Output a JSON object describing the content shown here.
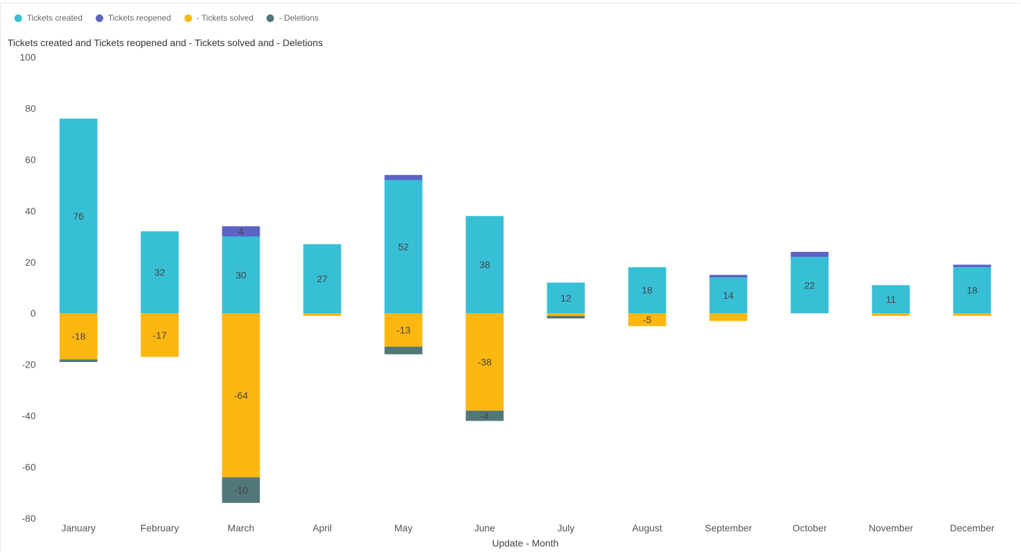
{
  "legend": [
    {
      "label": "Tickets created",
      "color": "#37bfd6"
    },
    {
      "label": "Tickets reopened",
      "color": "#5c63c4"
    },
    {
      "label": "- Tickets solved",
      "color": "#fcb711"
    },
    {
      "label": "- Deletions",
      "color": "#52777a"
    }
  ],
  "chart_data": {
    "type": "bar",
    "stacked": true,
    "title": "Tickets created and Tickets reopened and - Tickets solved and - Deletions",
    "xlabel": "Update - Month",
    "ylabel": "",
    "ylim": [
      -80,
      100
    ],
    "yticks": [
      100,
      80,
      60,
      40,
      20,
      0,
      -20,
      -40,
      -60,
      -80
    ],
    "categories": [
      "January",
      "February",
      "March",
      "April",
      "May",
      "June",
      "July",
      "August",
      "September",
      "October",
      "November",
      "December"
    ],
    "series": [
      {
        "name": "Tickets created",
        "color": "#37bfd6",
        "values": [
          76,
          32,
          30,
          27,
          52,
          38,
          12,
          18,
          14,
          22,
          11,
          18
        ]
      },
      {
        "name": "Tickets reopened",
        "color": "#5c63c4",
        "values": [
          0,
          0,
          4,
          0,
          2,
          0,
          0,
          0,
          1,
          2,
          0,
          1
        ]
      },
      {
        "name": "- Tickets solved",
        "color": "#fcb711",
        "values": [
          -18,
          -17,
          -64,
          -1,
          -13,
          -38,
          -1,
          -5,
          -3,
          0,
          -1,
          -1
        ]
      },
      {
        "name": "- Deletions",
        "color": "#52777a",
        "values": [
          -1,
          0,
          -10,
          0,
          -3,
          -4,
          -1,
          0,
          0,
          0,
          0,
          0
        ]
      }
    ],
    "data_labels": [
      {
        "series": 0,
        "index": 0,
        "text": "76"
      },
      {
        "series": 0,
        "index": 1,
        "text": "32"
      },
      {
        "series": 0,
        "index": 2,
        "text": "30"
      },
      {
        "series": 0,
        "index": 3,
        "text": "27"
      },
      {
        "series": 0,
        "index": 4,
        "text": "52"
      },
      {
        "series": 0,
        "index": 5,
        "text": "38"
      },
      {
        "series": 0,
        "index": 6,
        "text": "12"
      },
      {
        "series": 0,
        "index": 7,
        "text": "18"
      },
      {
        "series": 0,
        "index": 8,
        "text": "14"
      },
      {
        "series": 0,
        "index": 9,
        "text": "22"
      },
      {
        "series": 0,
        "index": 10,
        "text": "11"
      },
      {
        "series": 0,
        "index": 11,
        "text": "18"
      },
      {
        "series": 1,
        "index": 2,
        "text": "4"
      },
      {
        "series": 2,
        "index": 0,
        "text": "-18"
      },
      {
        "series": 2,
        "index": 1,
        "text": "-17"
      },
      {
        "series": 2,
        "index": 2,
        "text": "-64"
      },
      {
        "series": 2,
        "index": 4,
        "text": "-13"
      },
      {
        "series": 2,
        "index": 5,
        "text": "-38"
      },
      {
        "series": 2,
        "index": 7,
        "text": "-5"
      },
      {
        "series": 3,
        "index": 2,
        "text": "-10"
      },
      {
        "series": 3,
        "index": 5,
        "text": "-4"
      }
    ],
    "grid": false,
    "legend_position": "top-left"
  }
}
